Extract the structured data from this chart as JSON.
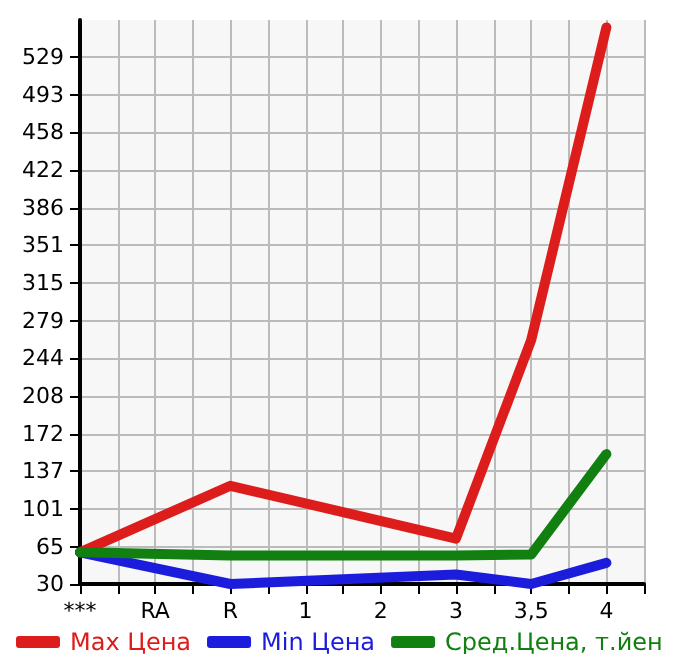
{
  "chart_data": {
    "type": "line",
    "categories": [
      "***",
      "RA",
      "R",
      "1",
      "2",
      "3",
      "3,5",
      "4"
    ],
    "series": [
      {
        "name": "Max Цена",
        "color": "#dd1c1c",
        "values": [
          60,
          null,
          123,
          null,
          null,
          73,
          261,
          557
        ]
      },
      {
        "name": "Min Цена",
        "color": "#1c1cdd",
        "values": [
          60,
          null,
          30,
          null,
          null,
          39,
          30,
          50
        ]
      },
      {
        "name": "Сред.Цена, т.йен",
        "color": "#118011",
        "values": [
          60,
          null,
          57,
          null,
          null,
          57,
          58,
          153
        ]
      }
    ],
    "ylim": [
      30,
      564
    ],
    "yticks": [
      30,
      65,
      101,
      137,
      172,
      208,
      244,
      279,
      315,
      351,
      386,
      422,
      458,
      493,
      529
    ],
    "grid": true,
    "legend": "bottom",
    "marker": "none",
    "line_style": "solid"
  }
}
